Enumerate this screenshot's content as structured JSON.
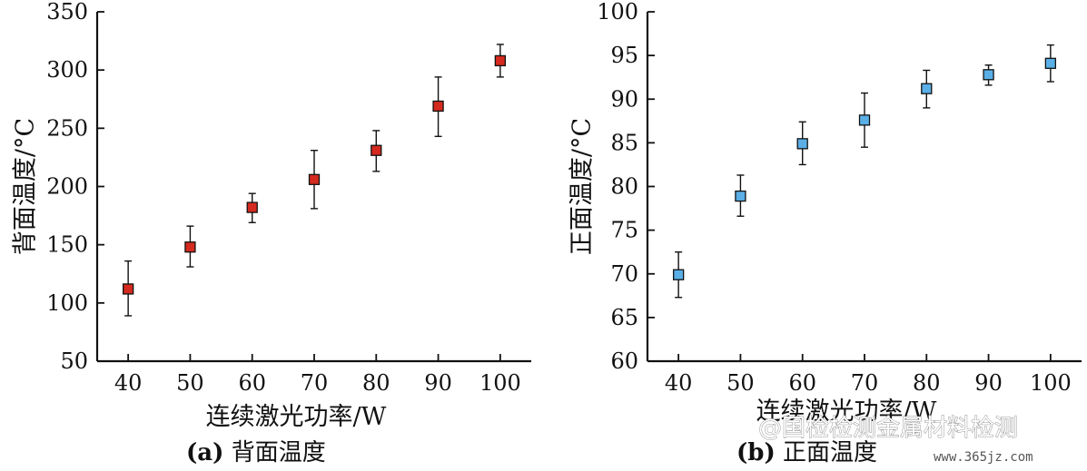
{
  "chart_data": [
    {
      "type": "scatter",
      "panel": "(a)",
      "caption_label": "(a)",
      "caption_text": "背面温度",
      "xlabel": "连续激光功率/W",
      "ylabel": "背面温度/°C",
      "x": [
        40,
        50,
        60,
        70,
        80,
        90,
        100
      ],
      "y": [
        112,
        148,
        182,
        206,
        231,
        269,
        308
      ],
      "err_low": [
        89,
        131,
        169,
        181,
        213,
        243,
        294
      ],
      "err_high": [
        136,
        166,
        194,
        231,
        248,
        294,
        322
      ],
      "xlim": [
        35,
        105
      ],
      "ylim": [
        50,
        350
      ],
      "xticks": [
        40,
        50,
        60,
        70,
        80,
        90,
        100
      ],
      "yticks": [
        50,
        100,
        150,
        200,
        250,
        300,
        350
      ],
      "marker_color": "#d42a1f",
      "grid": false
    },
    {
      "type": "scatter",
      "panel": "(b)",
      "caption_label": "(b)",
      "caption_text": "正面温度",
      "xlabel": "连续激光功率/W",
      "ylabel": "正面温度/°C",
      "x": [
        40,
        50,
        60,
        70,
        80,
        90,
        100
      ],
      "y": [
        69.9,
        78.9,
        84.9,
        87.6,
        91.2,
        92.8,
        94.1
      ],
      "err_low": [
        67.3,
        76.6,
        82.5,
        84.5,
        89.0,
        91.6,
        92.0
      ],
      "err_high": [
        72.5,
        81.3,
        87.4,
        90.7,
        93.3,
        93.9,
        96.2
      ],
      "xlim": [
        35,
        105
      ],
      "ylim": [
        60,
        100
      ],
      "xticks": [
        40,
        50,
        60,
        70,
        80,
        90,
        100
      ],
      "yticks": [
        60,
        65,
        70,
        75,
        80,
        85,
        90,
        95,
        100
      ],
      "marker_color": "#5aafe6",
      "grid": false
    }
  ],
  "watermark": {
    "text": "@国检检测金属材料检测",
    "url": "www.365jz.com"
  }
}
